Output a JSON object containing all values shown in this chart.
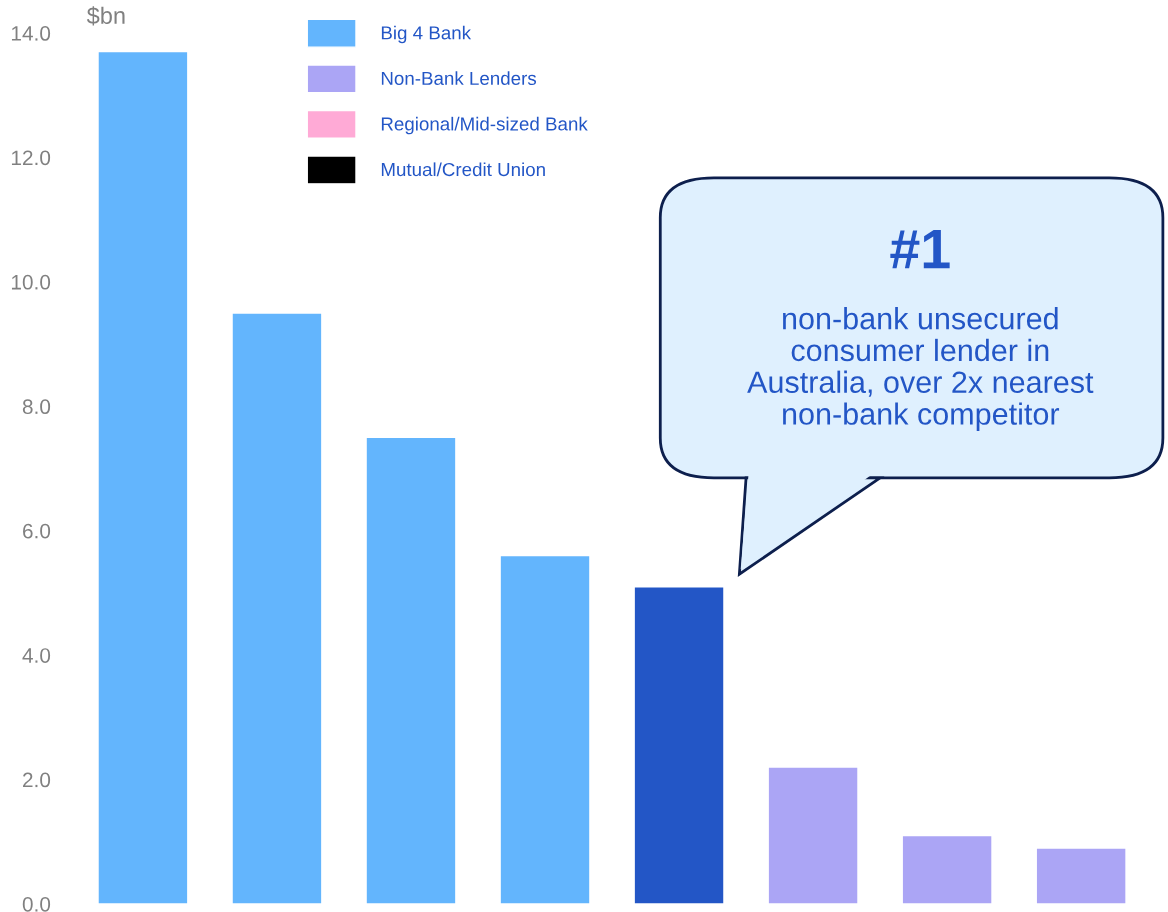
{
  "chart_data": {
    "type": "bar",
    "ylabel": "$bn",
    "stacked": true,
    "categories": [
      null,
      null,
      null,
      null,
      null,
      null,
      null,
      null
    ],
    "series": [
      {
        "name": "Big 4 Bank",
        "color": "#63b5fd",
        "values": [
          13.7,
          9.5,
          7.5,
          5.6,
          0,
          0,
          0,
          0
        ]
      },
      {
        "name": "Non-Bank Lenders",
        "color": "#aba5f5",
        "values": [
          0,
          0,
          0,
          0,
          0,
          2.2,
          1.1,
          0.9
        ]
      },
      {
        "name": "Regional/Mid-sized Bank",
        "color": "#ffaad6",
        "values": [
          0,
          0,
          0,
          0,
          0,
          0,
          0,
          0
        ]
      },
      {
        "name": "Mutual/Credit Union",
        "color": "#000000",
        "values": [
          0,
          0,
          0,
          0,
          0,
          0,
          0,
          0
        ]
      },
      {
        "color": "#2356c6",
        "values": [
          0,
          0,
          0,
          0,
          5.1,
          0,
          0,
          0
        ]
      }
    ],
    "ylim": [
      0,
      14
    ],
    "yticks": [
      {
        "value": 0,
        "label": "0.0"
      },
      {
        "value": 2,
        "label": "2.0"
      },
      {
        "value": 4,
        "label": "4.0"
      },
      {
        "value": 6,
        "label": "6.0"
      },
      {
        "value": 8,
        "label": "8.0"
      },
      {
        "value": 10,
        "label": "10.0"
      },
      {
        "value": 12,
        "label": "12.0"
      },
      {
        "value": 14,
        "label": "14.0"
      }
    ],
    "tick_labels": "y",
    "grid": false,
    "legend": "top left",
    "annotations": [
      "#1",
      "non-bank unsecured consumer lender in Australia, over 2x nearest non-bank competitor"
    ]
  }
}
